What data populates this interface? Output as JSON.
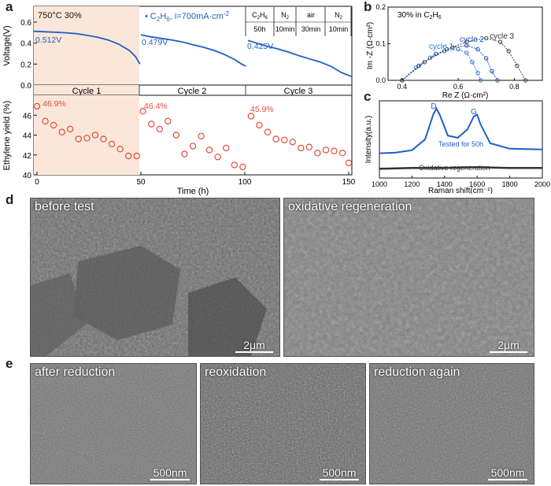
{
  "panel_labels": {
    "a": "a",
    "b": "b",
    "c": "c",
    "d": "d",
    "e": "e"
  },
  "colors": {
    "blue": "#1f5fc4",
    "red": "#e24a3b",
    "shade": "#fbe7d9",
    "cycle1": "#2a7be0",
    "cycle2": "#1a4fb0",
    "cycle3": "#444444",
    "raman_tested": "#1f5fc4",
    "raman_oxid": "#333333"
  },
  "chart_data": [
    {
      "id": "a-top",
      "type": "line",
      "ylabel": "Voltage(V)",
      "xlim": [
        0,
        150
      ],
      "ylim": [
        0.0,
        0.75
      ],
      "yticks": [
        "0.0",
        "0.2",
        "0.4",
        "0.6"
      ],
      "annotations": {
        "condition": "750°C  30%",
        "legend_prefix": "C",
        "legend_sub": "2",
        "legend_mid": "H",
        "legend_sub2": "6",
        "legend_suffix": ", i=700mA·cm",
        "legend_sup": "-2",
        "start_labels": [
          "0.512V",
          "0.479V",
          "0.425V"
        ],
        "cycle_labels": [
          "Cycle 1",
          "Cycle 2",
          "Cycle 3"
        ],
        "protocol_headers": [
          "C2H6",
          "N2",
          "air",
          "N2"
        ],
        "protocol_times": [
          "50h",
          "10min",
          "30min",
          "10min"
        ]
      },
      "series": [
        {
          "x": [
            0,
            5,
            10,
            15,
            20,
            25,
            30,
            35,
            40,
            45,
            48,
            50
          ],
          "y": [
            0.512,
            0.508,
            0.503,
            0.498,
            0.49,
            0.475,
            0.455,
            0.43,
            0.39,
            0.33,
            0.27,
            0.2
          ]
        },
        {
          "x": [
            50.5,
            55,
            60,
            65,
            70,
            75,
            80,
            85,
            90,
            95,
            98,
            100
          ],
          "y": [
            0.479,
            0.46,
            0.445,
            0.43,
            0.41,
            0.385,
            0.36,
            0.33,
            0.29,
            0.24,
            0.2,
            0.18
          ]
        },
        {
          "x": [
            101,
            105,
            110,
            115,
            120,
            125,
            130,
            135,
            140,
            145,
            150
          ],
          "y": [
            0.425,
            0.4,
            0.37,
            0.345,
            0.315,
            0.28,
            0.25,
            0.22,
            0.18,
            0.12,
            0.08
          ]
        }
      ]
    },
    {
      "id": "a-bottom",
      "type": "scatter",
      "xlabel": "Time (h)",
      "ylabel": "Ethylene yield (%)",
      "xlim": [
        0,
        150
      ],
      "ylim": [
        40,
        48
      ],
      "xticks": [
        "0",
        "50",
        "100",
        "150"
      ],
      "yticks": [
        "40",
        "42",
        "44",
        "46"
      ],
      "annotations": {
        "start_labels": [
          "46.9%",
          "46.4%",
          "45.9%"
        ]
      },
      "x": [
        0,
        4,
        8,
        12,
        16,
        20,
        24,
        28,
        32,
        36,
        40,
        44,
        48,
        51,
        55,
        59,
        63,
        67,
        71,
        75,
        79,
        83,
        87,
        91,
        95,
        99,
        103,
        107,
        111,
        115,
        119,
        123,
        127,
        131,
        135,
        139,
        143,
        147,
        150
      ],
      "y": [
        46.9,
        45.4,
        45.0,
        44.3,
        44.6,
        43.6,
        43.7,
        44.0,
        43.6,
        43.1,
        42.6,
        41.9,
        41.9,
        46.4,
        45.1,
        44.6,
        45.4,
        44.0,
        42.1,
        42.9,
        43.9,
        42.5,
        41.8,
        42.7,
        41.0,
        40.8,
        45.9,
        45.0,
        44.3,
        43.6,
        43.5,
        43.3,
        42.7,
        42.8,
        42.2,
        42.5,
        42.4,
        42.2,
        41.2
      ]
    },
    {
      "id": "b",
      "type": "line",
      "xlabel": "Re Z (Ω·cm²)",
      "ylabel": "Im -Z (Ω·cm²)",
      "xlim": [
        0.35,
        0.9
      ],
      "ylim": [
        0.0,
        0.2
      ],
      "xticks": [
        "0.4",
        "0.6",
        "0.8"
      ],
      "yticks": [
        "0.0",
        "0.1",
        "0.2"
      ],
      "annotations": {
        "title": "30%  in C2H6"
      },
      "series": [
        {
          "name": "cycle 1",
          "x": [
            0.4,
            0.45,
            0.5,
            0.55,
            0.6,
            0.63,
            0.65,
            0.67,
            0.68
          ],
          "y": [
            0.0,
            0.035,
            0.062,
            0.08,
            0.085,
            0.075,
            0.05,
            0.02,
            0.0
          ]
        },
        {
          "name": "cycle 2",
          "x": [
            0.4,
            0.46,
            0.52,
            0.58,
            0.63,
            0.67,
            0.7,
            0.72,
            0.74
          ],
          "y": [
            0.0,
            0.04,
            0.072,
            0.09,
            0.095,
            0.085,
            0.06,
            0.025,
            0.0
          ]
        },
        {
          "name": "cycle 3",
          "x": [
            0.4,
            0.48,
            0.56,
            0.63,
            0.7,
            0.75,
            0.78,
            0.81,
            0.84
          ],
          "y": [
            0.0,
            0.05,
            0.085,
            0.105,
            0.115,
            0.105,
            0.08,
            0.04,
            0.0
          ]
        }
      ]
    },
    {
      "id": "c",
      "type": "line",
      "xlabel": "Raman shift(cm⁻¹)",
      "ylabel": "Intensity(a.u.)",
      "xlim": [
        1000,
        2000
      ],
      "xticks": [
        "1000",
        "1200",
        "1400",
        "1600",
        "1800",
        "2000"
      ],
      "annotations": {
        "peaks": [
          "D",
          "G"
        ]
      },
      "series": [
        {
          "name": "Tested for 50h",
          "x": [
            1000,
            1100,
            1200,
            1280,
            1330,
            1350,
            1370,
            1420,
            1480,
            1540,
            1580,
            1600,
            1620,
            1680,
            1800,
            2000
          ],
          "y": [
            0.32,
            0.33,
            0.36,
            0.5,
            0.82,
            0.9,
            0.82,
            0.55,
            0.52,
            0.63,
            0.8,
            0.82,
            0.7,
            0.45,
            0.38,
            0.37
          ]
        },
        {
          "name": "Oxidative regeneration",
          "x": [
            1000,
            1200,
            1400,
            1600,
            1800,
            2000
          ],
          "y": [
            0.12,
            0.13,
            0.13,
            0.14,
            0.13,
            0.13
          ]
        }
      ]
    }
  ],
  "sem_d": [
    {
      "label": "before test",
      "scale": "2μm"
    },
    {
      "label": "oxidative regeneration",
      "scale": "2μm"
    }
  ],
  "sem_e": [
    {
      "label": "after reduction",
      "scale": "500nm"
    },
    {
      "label": "reoxidation",
      "scale": "500nm"
    },
    {
      "label": "reduction again",
      "scale": "500nm"
    }
  ]
}
